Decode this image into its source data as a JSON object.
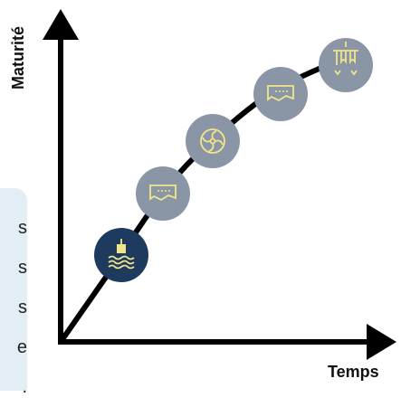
{
  "axes": {
    "y_label": "Maturité",
    "x_label": "Temps"
  },
  "side_panel": {
    "lines": [
      "s",
      "s",
      "s",
      "e",
      "."
    ]
  },
  "stages": [
    {
      "icon": "buoy-waves-icon",
      "highlighted": true
    },
    {
      "icon": "warning-sign-icon",
      "highlighted": false
    },
    {
      "icon": "fan-turbine-icon",
      "highlighted": false
    },
    {
      "icon": "warning-sign-icon",
      "highlighted": false
    },
    {
      "icon": "tank-valve-icon",
      "highlighted": false
    }
  ],
  "colors": {
    "axis": "#000000",
    "curve": "#000000",
    "stage_fill": "#8a96a6",
    "stage_active_fill": "#1f3a5f",
    "icon_stroke": "#f1e58a",
    "panel_bg": "#e3eef4"
  }
}
